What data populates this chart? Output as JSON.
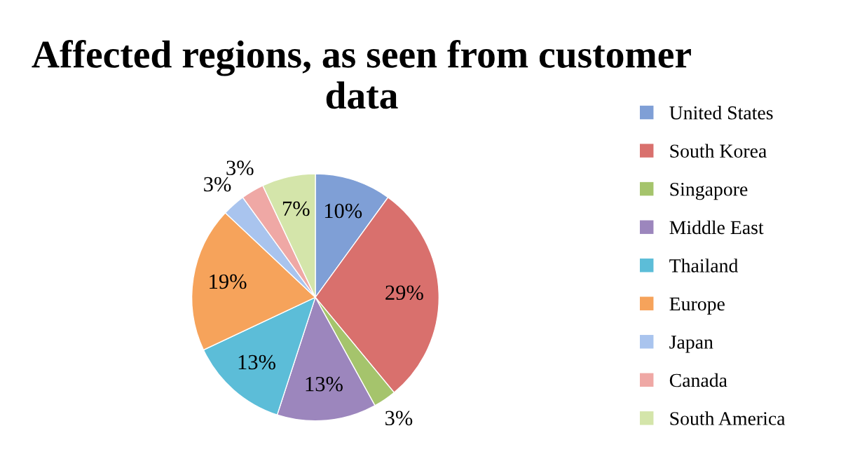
{
  "chart_data": {
    "type": "pie",
    "title": "Affected regions, as seen from customer data",
    "categories": [
      "United States",
      "South Korea",
      "Singapore",
      "Middle East",
      "Thailand",
      "Europe",
      "Japan",
      "Canada",
      "South America"
    ],
    "values": [
      10,
      29,
      3,
      13,
      13,
      19,
      3,
      3,
      7
    ],
    "value_labels": [
      "10%",
      "29%",
      "3%",
      "13%",
      "13%",
      "19%",
      "3%",
      "3%",
      "7%"
    ],
    "colors": [
      "#7f9fd6",
      "#d9706d",
      "#a5c46c",
      "#9c86bd",
      "#5cbdd8",
      "#f6a35b",
      "#a9c4ee",
      "#efa8a5",
      "#d4e5aa"
    ],
    "legend": "right"
  }
}
